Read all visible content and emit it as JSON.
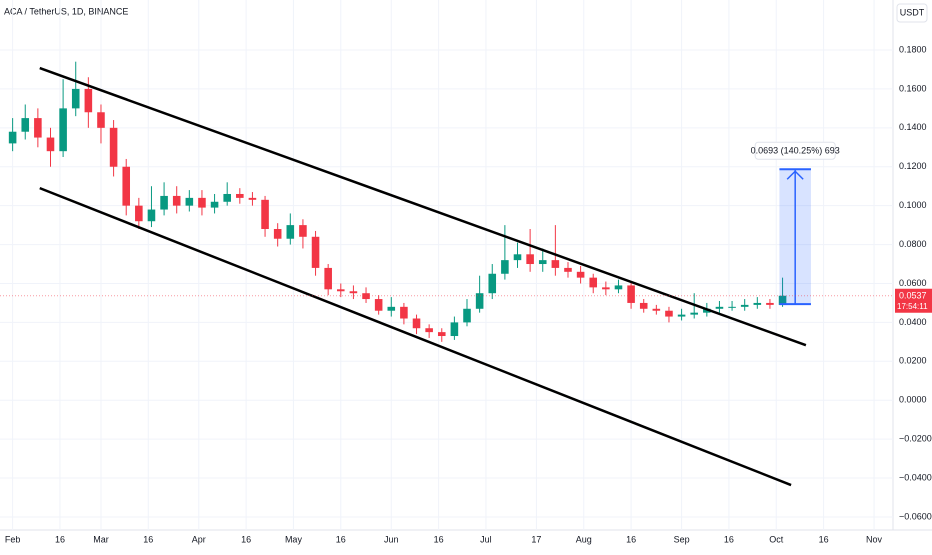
{
  "chart_data": {
    "type": "candlestick",
    "title": "ACA / TetherUS, 1D, BINANCE",
    "currency": "USDT",
    "up_color": "#089981",
    "down_color": "#f23645",
    "grid": true,
    "x": [
      0,
      4,
      8,
      12,
      16,
      20,
      24,
      28,
      32,
      36,
      40,
      44,
      48,
      52,
      56,
      60,
      64,
      68,
      72,
      76,
      80,
      84,
      88,
      92,
      96,
      100,
      104,
      108,
      112,
      116,
      120,
      124,
      128,
      132,
      136,
      140,
      144,
      148,
      152,
      156,
      160,
      164,
      168,
      172,
      176,
      180,
      184,
      188,
      192,
      196,
      200,
      204,
      208,
      212,
      216,
      220,
      224,
      228,
      232,
      236,
      240,
      244
    ],
    "open": [
      0.132,
      0.138,
      0.145,
      0.135,
      0.128,
      0.15,
      0.16,
      0.148,
      0.14,
      0.12,
      0.1,
      0.092,
      0.098,
      0.105,
      0.1,
      0.104,
      0.099,
      0.102,
      0.106,
      0.104,
      0.103,
      0.088,
      0.083,
      0.09,
      0.084,
      0.068,
      0.057,
      0.056,
      0.055,
      0.052,
      0.046,
      0.048,
      0.042,
      0.037,
      0.035,
      0.033,
      0.04,
      0.047,
      0.055,
      0.065,
      0.072,
      0.075,
      0.07,
      0.072,
      0.068,
      0.066,
      0.063,
      0.058,
      0.057,
      0.059,
      0.05,
      0.047,
      0.046,
      0.043,
      0.044,
      0.045,
      0.047,
      0.048,
      0.048,
      0.049,
      0.05,
      0.049
    ],
    "high": [
      0.145,
      0.152,
      0.15,
      0.14,
      0.165,
      0.174,
      0.166,
      0.152,
      0.144,
      0.124,
      0.104,
      0.11,
      0.112,
      0.11,
      0.108,
      0.108,
      0.106,
      0.112,
      0.109,
      0.107,
      0.105,
      0.091,
      0.096,
      0.093,
      0.087,
      0.07,
      0.06,
      0.059,
      0.058,
      0.054,
      0.053,
      0.05,
      0.044,
      0.039,
      0.037,
      0.043,
      0.052,
      0.064,
      0.07,
      0.09,
      0.081,
      0.088,
      0.078,
      0.09,
      0.071,
      0.069,
      0.065,
      0.061,
      0.062,
      0.061,
      0.052,
      0.049,
      0.048,
      0.047,
      0.055,
      0.05,
      0.051,
      0.051,
      0.052,
      0.053,
      0.052,
      0.063
    ],
    "low": [
      0.128,
      0.134,
      0.13,
      0.12,
      0.125,
      0.146,
      0.14,
      0.132,
      0.115,
      0.095,
      0.088,
      0.089,
      0.095,
      0.096,
      0.097,
      0.095,
      0.096,
      0.1,
      0.101,
      0.1,
      0.084,
      0.079,
      0.08,
      0.078,
      0.064,
      0.054,
      0.053,
      0.052,
      0.05,
      0.044,
      0.043,
      0.039,
      0.034,
      0.032,
      0.03,
      0.031,
      0.038,
      0.045,
      0.052,
      0.062,
      0.068,
      0.066,
      0.066,
      0.064,
      0.063,
      0.06,
      0.055,
      0.054,
      0.055,
      0.047,
      0.045,
      0.044,
      0.04,
      0.041,
      0.042,
      0.043,
      0.045,
      0.046,
      0.046,
      0.047,
      0.047,
      0.048
    ],
    "close": [
      0.138,
      0.145,
      0.135,
      0.128,
      0.15,
      0.16,
      0.148,
      0.14,
      0.12,
      0.1,
      0.092,
      0.098,
      0.105,
      0.1,
      0.104,
      0.099,
      0.102,
      0.106,
      0.104,
      0.103,
      0.088,
      0.083,
      0.09,
      0.084,
      0.068,
      0.057,
      0.056,
      0.055,
      0.052,
      0.046,
      0.048,
      0.042,
      0.037,
      0.035,
      0.033,
      0.04,
      0.047,
      0.055,
      0.065,
      0.072,
      0.075,
      0.07,
      0.072,
      0.068,
      0.066,
      0.063,
      0.058,
      0.057,
      0.059,
      0.05,
      0.047,
      0.046,
      0.043,
      0.044,
      0.045,
      0.047,
      0.048,
      0.048,
      0.049,
      0.05,
      0.049,
      0.0537
    ],
    "xlim": [
      -4,
      279
    ],
    "xticks": [
      {
        "value": 0,
        "label": "Feb"
      },
      {
        "value": 15,
        "label": "16"
      },
      {
        "value": 28,
        "label": "Mar"
      },
      {
        "value": 43,
        "label": "16"
      },
      {
        "value": 59,
        "label": "Apr"
      },
      {
        "value": 74,
        "label": "16"
      },
      {
        "value": 89,
        "label": "May"
      },
      {
        "value": 104,
        "label": "16"
      },
      {
        "value": 120,
        "label": "Jun"
      },
      {
        "value": 135,
        "label": "16"
      },
      {
        "value": 150,
        "label": "Jul"
      },
      {
        "value": 166,
        "label": "17"
      },
      {
        "value": 181,
        "label": "Aug"
      },
      {
        "value": 196,
        "label": "16"
      },
      {
        "value": 212,
        "label": "Sep"
      },
      {
        "value": 227,
        "label": "16"
      },
      {
        "value": 242,
        "label": "Oct"
      },
      {
        "value": 257,
        "label": "16"
      },
      {
        "value": 273,
        "label": "Nov"
      }
    ],
    "ylim": [
      -0.0667,
      0.2057
    ],
    "yticks": [
      {
        "value": 0.18,
        "label": "0.1800"
      },
      {
        "value": 0.16,
        "label": "0.1600"
      },
      {
        "value": 0.14,
        "label": "0.1400"
      },
      {
        "value": 0.12,
        "label": "0.1200"
      },
      {
        "value": 0.1,
        "label": "0.1000"
      },
      {
        "value": 0.08,
        "label": "0.0800"
      },
      {
        "value": 0.06,
        "label": "0.0600"
      },
      {
        "value": 0.04,
        "label": "0.0400"
      },
      {
        "value": 0.02,
        "label": "0.0200"
      },
      {
        "value": 0,
        "label": "0.0000"
      },
      {
        "value": -0.02,
        "label": "−0.0200"
      },
      {
        "value": -0.04,
        "label": "−0.0400"
      },
      {
        "value": -0.06,
        "label": "−0.0600"
      }
    ],
    "trend_lines": [
      {
        "x": [
          8.6,
          251.4
        ],
        "y": [
          0.1707,
          0.0283
        ],
        "color": "#000000"
      },
      {
        "x": [
          8.6,
          246.7
        ],
        "y": [
          0.109,
          -0.0436
        ],
        "color": "#000000"
      }
    ],
    "measure": {
      "x": [
        243,
        253
      ],
      "from": 0.0494,
      "to": 0.1187,
      "label": "0.0693 (140.25%) 693",
      "color": "#2962ff"
    },
    "last_price": {
      "value": 0.0537,
      "label": "0.0537",
      "countdown": "17:54:11"
    }
  }
}
